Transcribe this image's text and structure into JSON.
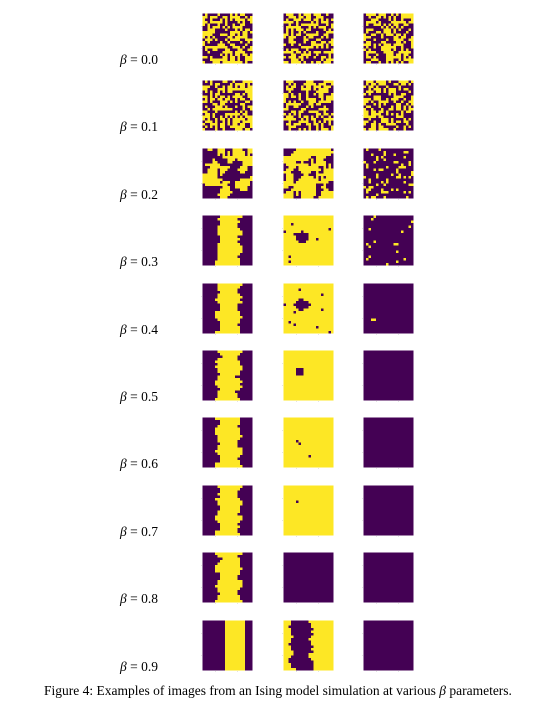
{
  "figure": {
    "caption_prefix": "Figure 4: Examples of images from an Ising model simulation at various ",
    "caption_symbol": "β",
    "caption_suffix": " parameters.",
    "colors": {
      "spin_up": "#fde725",
      "spin_down": "#440154",
      "tick": "#c8c8c8"
    },
    "rows": [
      {
        "beta_text": "= 0.0",
        "samples": [
          "noise-50",
          "noise-50",
          "noise-50"
        ]
      },
      {
        "beta_text": "= 0.1",
        "samples": [
          "noise-50",
          "noise-50",
          "noise-50"
        ]
      },
      {
        "beta_text": "= 0.2",
        "samples": [
          "clusters",
          "clusters",
          "mostly-dark-specks"
        ]
      },
      {
        "beta_text": "= 0.3",
        "samples": [
          "dark-left-stripe",
          "yellow-dark-blob",
          "dark-yellow-specks"
        ]
      },
      {
        "beta_text": "= 0.4",
        "samples": [
          "dark-left-stripe",
          "yellow-dark-blob",
          "dark-tiny-blob"
        ]
      },
      {
        "beta_text": "= 0.5",
        "samples": [
          "dark-left-stripe",
          "yellow-small-blob",
          "dark-uniform"
        ]
      },
      {
        "beta_text": "= 0.6",
        "samples": [
          "dark-left-stripe",
          "yellow-dots",
          "dark-uniform"
        ]
      },
      {
        "beta_text": "= 0.7",
        "samples": [
          "dark-left-stripe",
          "yellow-dot",
          "dark-uniform"
        ]
      },
      {
        "beta_text": "= 0.8",
        "samples": [
          "dark-left-stripe",
          "dark-uniform",
          "dark-uniform"
        ]
      },
      {
        "beta_text": "= 0.9",
        "samples": [
          "yellow-band",
          "dark-yellow-band",
          "dark-uniform"
        ]
      }
    ]
  }
}
